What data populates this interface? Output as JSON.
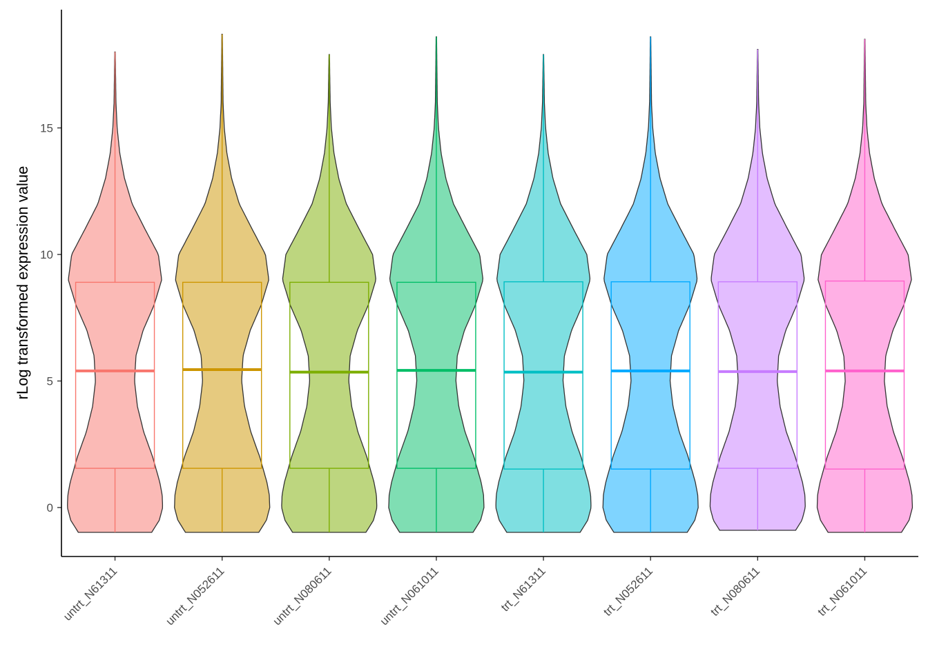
{
  "chart_data": {
    "type": "violin",
    "title": "",
    "xlabel": "",
    "ylabel": "rLog transformed expression value",
    "ylim": [
      -2.0,
      19.5
    ],
    "yticks": [
      0,
      5,
      10,
      15
    ],
    "grid": false,
    "legend": "none",
    "categories": [
      "untrt_N61311",
      "untrt_N052611",
      "untrt_N080611",
      "untrt_N061011",
      "trt_N61311",
      "trt_N052611",
      "trt_N080611",
      "trt_N061011"
    ],
    "series": [
      {
        "category": "untrt_N61311",
        "color": "#F8766D",
        "min": -0.98,
        "max": 18.0,
        "q1": 1.55,
        "median": 5.4,
        "q3": 8.9
      },
      {
        "category": "untrt_N052611",
        "color": "#CD9600",
        "min": -0.98,
        "max": 18.7,
        "q1": 1.55,
        "median": 5.45,
        "q3": 8.9
      },
      {
        "category": "untrt_N080611",
        "color": "#7CAE00",
        "min": -0.98,
        "max": 17.9,
        "q1": 1.55,
        "median": 5.35,
        "q3": 8.9
      },
      {
        "category": "untrt_N061011",
        "color": "#00BE67",
        "min": -0.98,
        "max": 18.6,
        "q1": 1.55,
        "median": 5.42,
        "q3": 8.9
      },
      {
        "category": "trt_N61311",
        "color": "#00BFC4",
        "min": -0.98,
        "max": 17.9,
        "q1": 1.52,
        "median": 5.35,
        "q3": 8.92
      },
      {
        "category": "trt_N052611",
        "color": "#00A9FF",
        "min": -0.98,
        "max": 18.6,
        "q1": 1.52,
        "median": 5.4,
        "q3": 8.92
      },
      {
        "category": "trt_N080611",
        "color": "#C77CFF",
        "min": -0.9,
        "max": 18.1,
        "q1": 1.55,
        "median": 5.37,
        "q3": 8.92
      },
      {
        "category": "trt_N061011",
        "color": "#FF61CC",
        "min": -0.98,
        "max": 18.5,
        "q1": 1.52,
        "median": 5.4,
        "q3": 8.95
      }
    ],
    "density_profile": {
      "y": [
        -0.98,
        -0.5,
        0,
        0.5,
        1,
        2,
        3,
        4,
        5,
        6,
        7,
        8,
        9,
        10,
        11,
        12,
        13,
        14,
        15,
        16,
        18.7
      ],
      "half_width": [
        0.77,
        0.93,
        1.0,
        0.99,
        0.94,
        0.79,
        0.6,
        0.47,
        0.41,
        0.44,
        0.59,
        0.82,
        0.98,
        0.91,
        0.63,
        0.36,
        0.2,
        0.1,
        0.045,
        0.02,
        0.005
      ]
    }
  }
}
